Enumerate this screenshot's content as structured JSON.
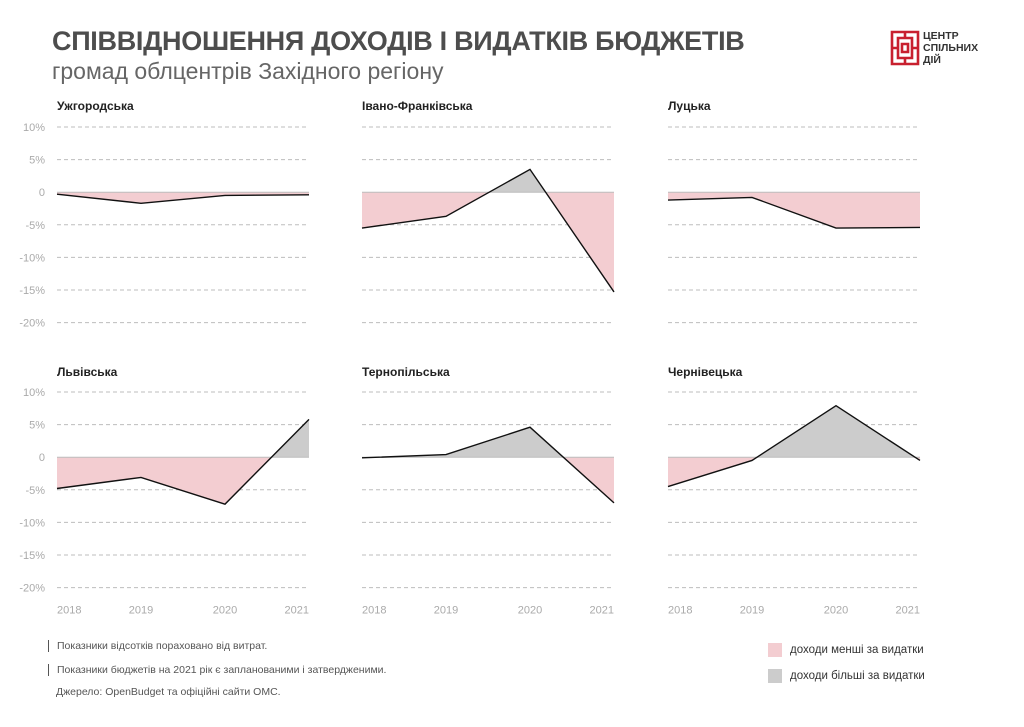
{
  "header": {
    "title": "СПІВВІДНОШЕННЯ ДОХОДІВ І ВИДАТКІВ БЮДЖЕТІВ",
    "subtitle": "громад облцентрів Західного регіону"
  },
  "logo": {
    "lines": [
      "ЦЕНТР",
      "СПІЛЬНИХ",
      "ДІЙ"
    ],
    "color": "#c8202f"
  },
  "chart_data": {
    "type": "area",
    "x": [
      "2018",
      "2019",
      "2020",
      "2021"
    ],
    "ylim": [
      -20,
      10
    ],
    "yticks": [
      "10%",
      "5%",
      "0",
      "-5%",
      "-10%",
      "-15%",
      "-20%"
    ],
    "unit": "%",
    "panels": [
      {
        "name": "Ужгородська",
        "values": [
          -0.3,
          -1.7,
          -0.5,
          -0.4
        ]
      },
      {
        "name": "Івано-Франківська",
        "values": [
          -5.5,
          -3.7,
          3.5,
          -15.3
        ]
      },
      {
        "name": "Луцька",
        "values": [
          -1.2,
          -0.8,
          -5.5,
          -5.4
        ]
      },
      {
        "name": "Львівська",
        "values": [
          -4.8,
          -3.1,
          -7.2,
          5.8
        ]
      },
      {
        "name": "Тернопільська",
        "values": [
          -0.1,
          0.4,
          4.6,
          -7.0
        ]
      },
      {
        "name": "Чернівецька",
        "values": [
          -4.5,
          -0.5,
          7.9,
          -0.5
        ]
      }
    ]
  },
  "legend": {
    "negative": {
      "label": "доходи менші за видатки",
      "color": "#f3cdd1"
    },
    "positive": {
      "label": "доходи більші за видатки",
      "color": "#cccccc"
    }
  },
  "footer": {
    "notes": [
      "Показники відсотків пораховано від витрат.",
      "Показники бюджетів на 2021 рік є запланованими і затвердженими.",
      "Джерело: OpenBudget та офіційні сайти ОМС."
    ]
  }
}
